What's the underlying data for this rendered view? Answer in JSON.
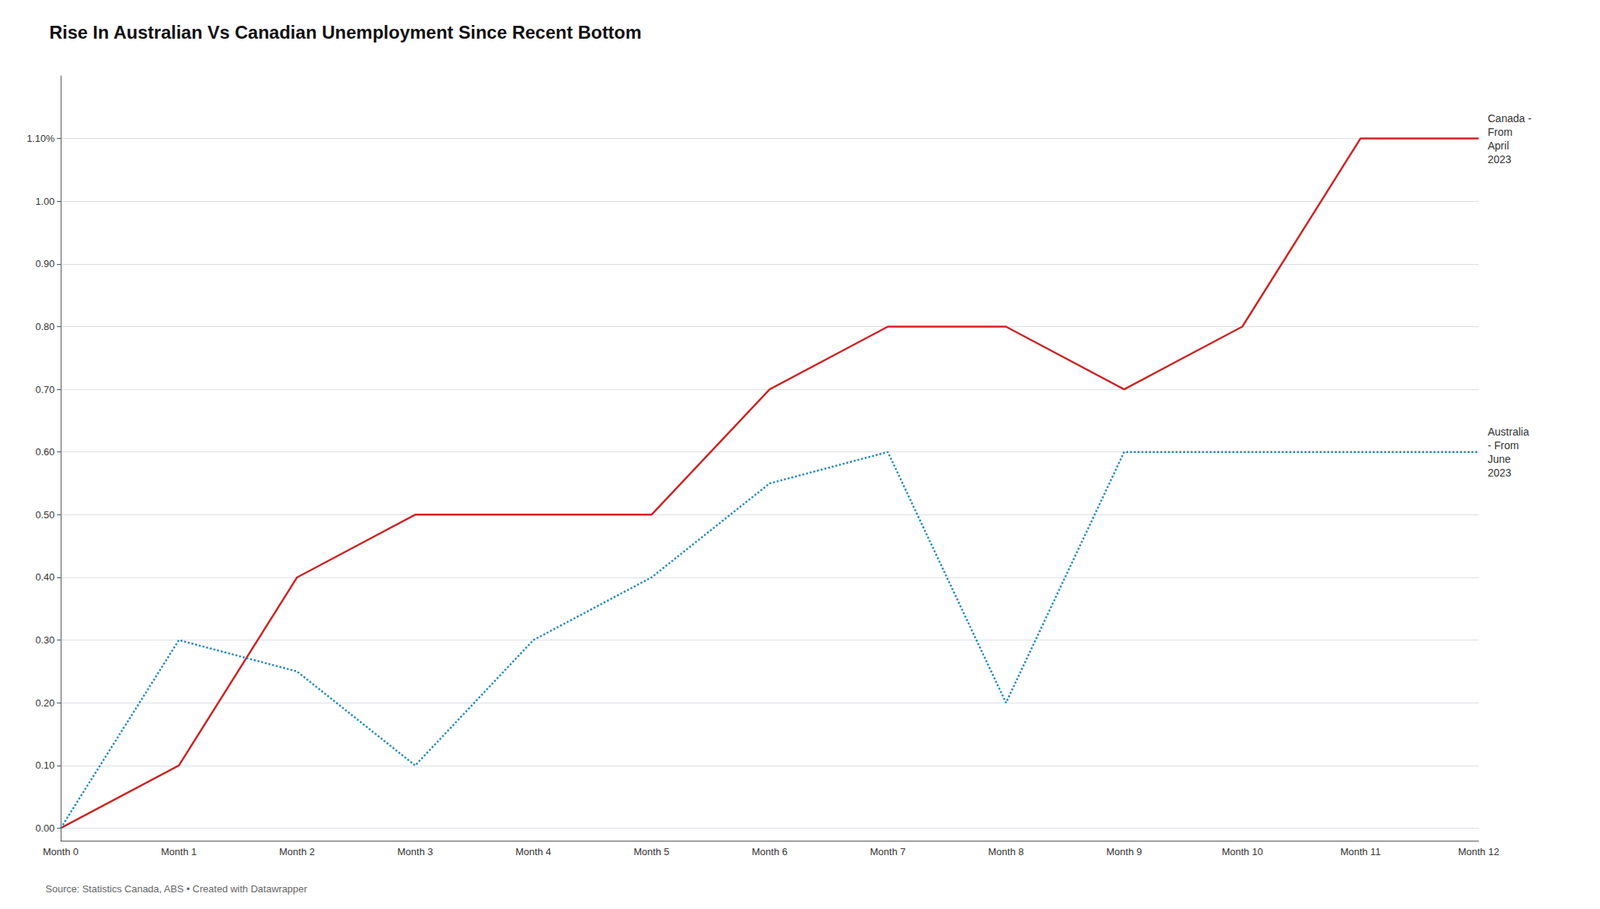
{
  "chart_data": {
    "type": "line",
    "title": "Rise In Australian Vs Canadian Unemployment Since Recent Bottom",
    "annotations": [
      "Source: Statistics Canada, ABS • Created with Datawrapper"
    ],
    "categories": [
      "Month 0",
      "Month 1",
      "Month 2",
      "Month 3",
      "Month 4",
      "Month 5",
      "Month 6",
      "Month 7",
      "Month 8",
      "Month 9",
      "Month 10",
      "Month 11",
      "Month 12"
    ],
    "series": [
      {
        "name": "Canada -\nFrom\nApril\n2023",
        "color": "#cc2222",
        "line_style": "solid",
        "values": [
          0.0,
          0.1,
          0.4,
          0.5,
          0.5,
          0.5,
          0.7,
          0.8,
          0.8,
          0.7,
          0.8,
          1.1,
          1.1
        ]
      },
      {
        "name": "Australia\n- From\nJune\n2023",
        "color": "#2288bb",
        "line_style": "dotted",
        "values": [
          0.0,
          0.3,
          0.25,
          0.1,
          0.3,
          0.4,
          0.55,
          0.6,
          0.2,
          0.6,
          0.6,
          0.6,
          0.6
        ]
      }
    ],
    "ylim": [
      -0.02,
      1.2
    ],
    "yticks": [
      {
        "value": 0.0,
        "label": "0.00"
      },
      {
        "value": 0.1,
        "label": "0.10"
      },
      {
        "value": 0.2,
        "label": "0.20"
      },
      {
        "value": 0.3,
        "label": "0.30"
      },
      {
        "value": 0.4,
        "label": "0.40"
      },
      {
        "value": 0.5,
        "label": "0.50"
      },
      {
        "value": 0.6,
        "label": "0.60"
      },
      {
        "value": 0.7,
        "label": "0.70"
      },
      {
        "value": 0.8,
        "label": "0.80"
      },
      {
        "value": 0.9,
        "label": "0.90"
      },
      {
        "value": 1.0,
        "label": "1.00"
      },
      {
        "value": 1.1,
        "label": "1.10%"
      }
    ],
    "grid": true
  }
}
